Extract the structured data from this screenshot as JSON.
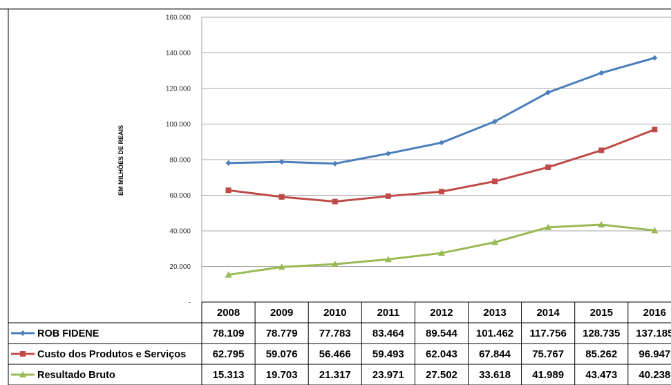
{
  "chart_data": {
    "type": "line",
    "title": "",
    "ylabel": "EM MILHÕES DE REAIS",
    "xlabel": "",
    "ylim": [
      0,
      160000
    ],
    "y_ticks": [
      0,
      20000,
      40000,
      60000,
      80000,
      100000,
      120000,
      140000,
      160000
    ],
    "y_tick_labels": [
      "-",
      "20.000",
      "40.000",
      "60.000",
      "80.000",
      "100.000",
      "120.000",
      "140.000",
      "160.000"
    ],
    "grid": true,
    "legend": "data-table",
    "categories": [
      "2008",
      "2009",
      "2010",
      "2011",
      "2012",
      "2013",
      "2014",
      "2015",
      "2016"
    ],
    "series": [
      {
        "name": "ROB FIDENE",
        "color": "#4A7EBB",
        "marker": "diamond",
        "values": [
          78109,
          78779,
          77783,
          83464,
          89544,
          101462,
          117756,
          128735,
          137185
        ],
        "labels": [
          "78.109",
          "78.779",
          "77.783",
          "83.464",
          "89.544",
          "101.462",
          "117.756",
          "128.735",
          "137.185"
        ]
      },
      {
        "name": "Custo dos Produtos e Serviços",
        "color": "#BE4B48",
        "marker": "square",
        "values": [
          62795,
          59076,
          56466,
          59493,
          62043,
          67844,
          75767,
          85262,
          96947
        ],
        "labels": [
          "62.795",
          "59.076",
          "56.466",
          "59.493",
          "62.043",
          "67.844",
          "75.767",
          "85.262",
          "96.947"
        ]
      },
      {
        "name": "Resultado Bruto",
        "color": "#98B954",
        "marker": "triangle",
        "values": [
          15313,
          19703,
          21317,
          23971,
          27502,
          33618,
          41989,
          43473,
          40238
        ],
        "labels": [
          "15.313",
          "19.703",
          "21.317",
          "23.971",
          "27.502",
          "33.618",
          "41.989",
          "43.473",
          "40.238"
        ]
      }
    ]
  }
}
